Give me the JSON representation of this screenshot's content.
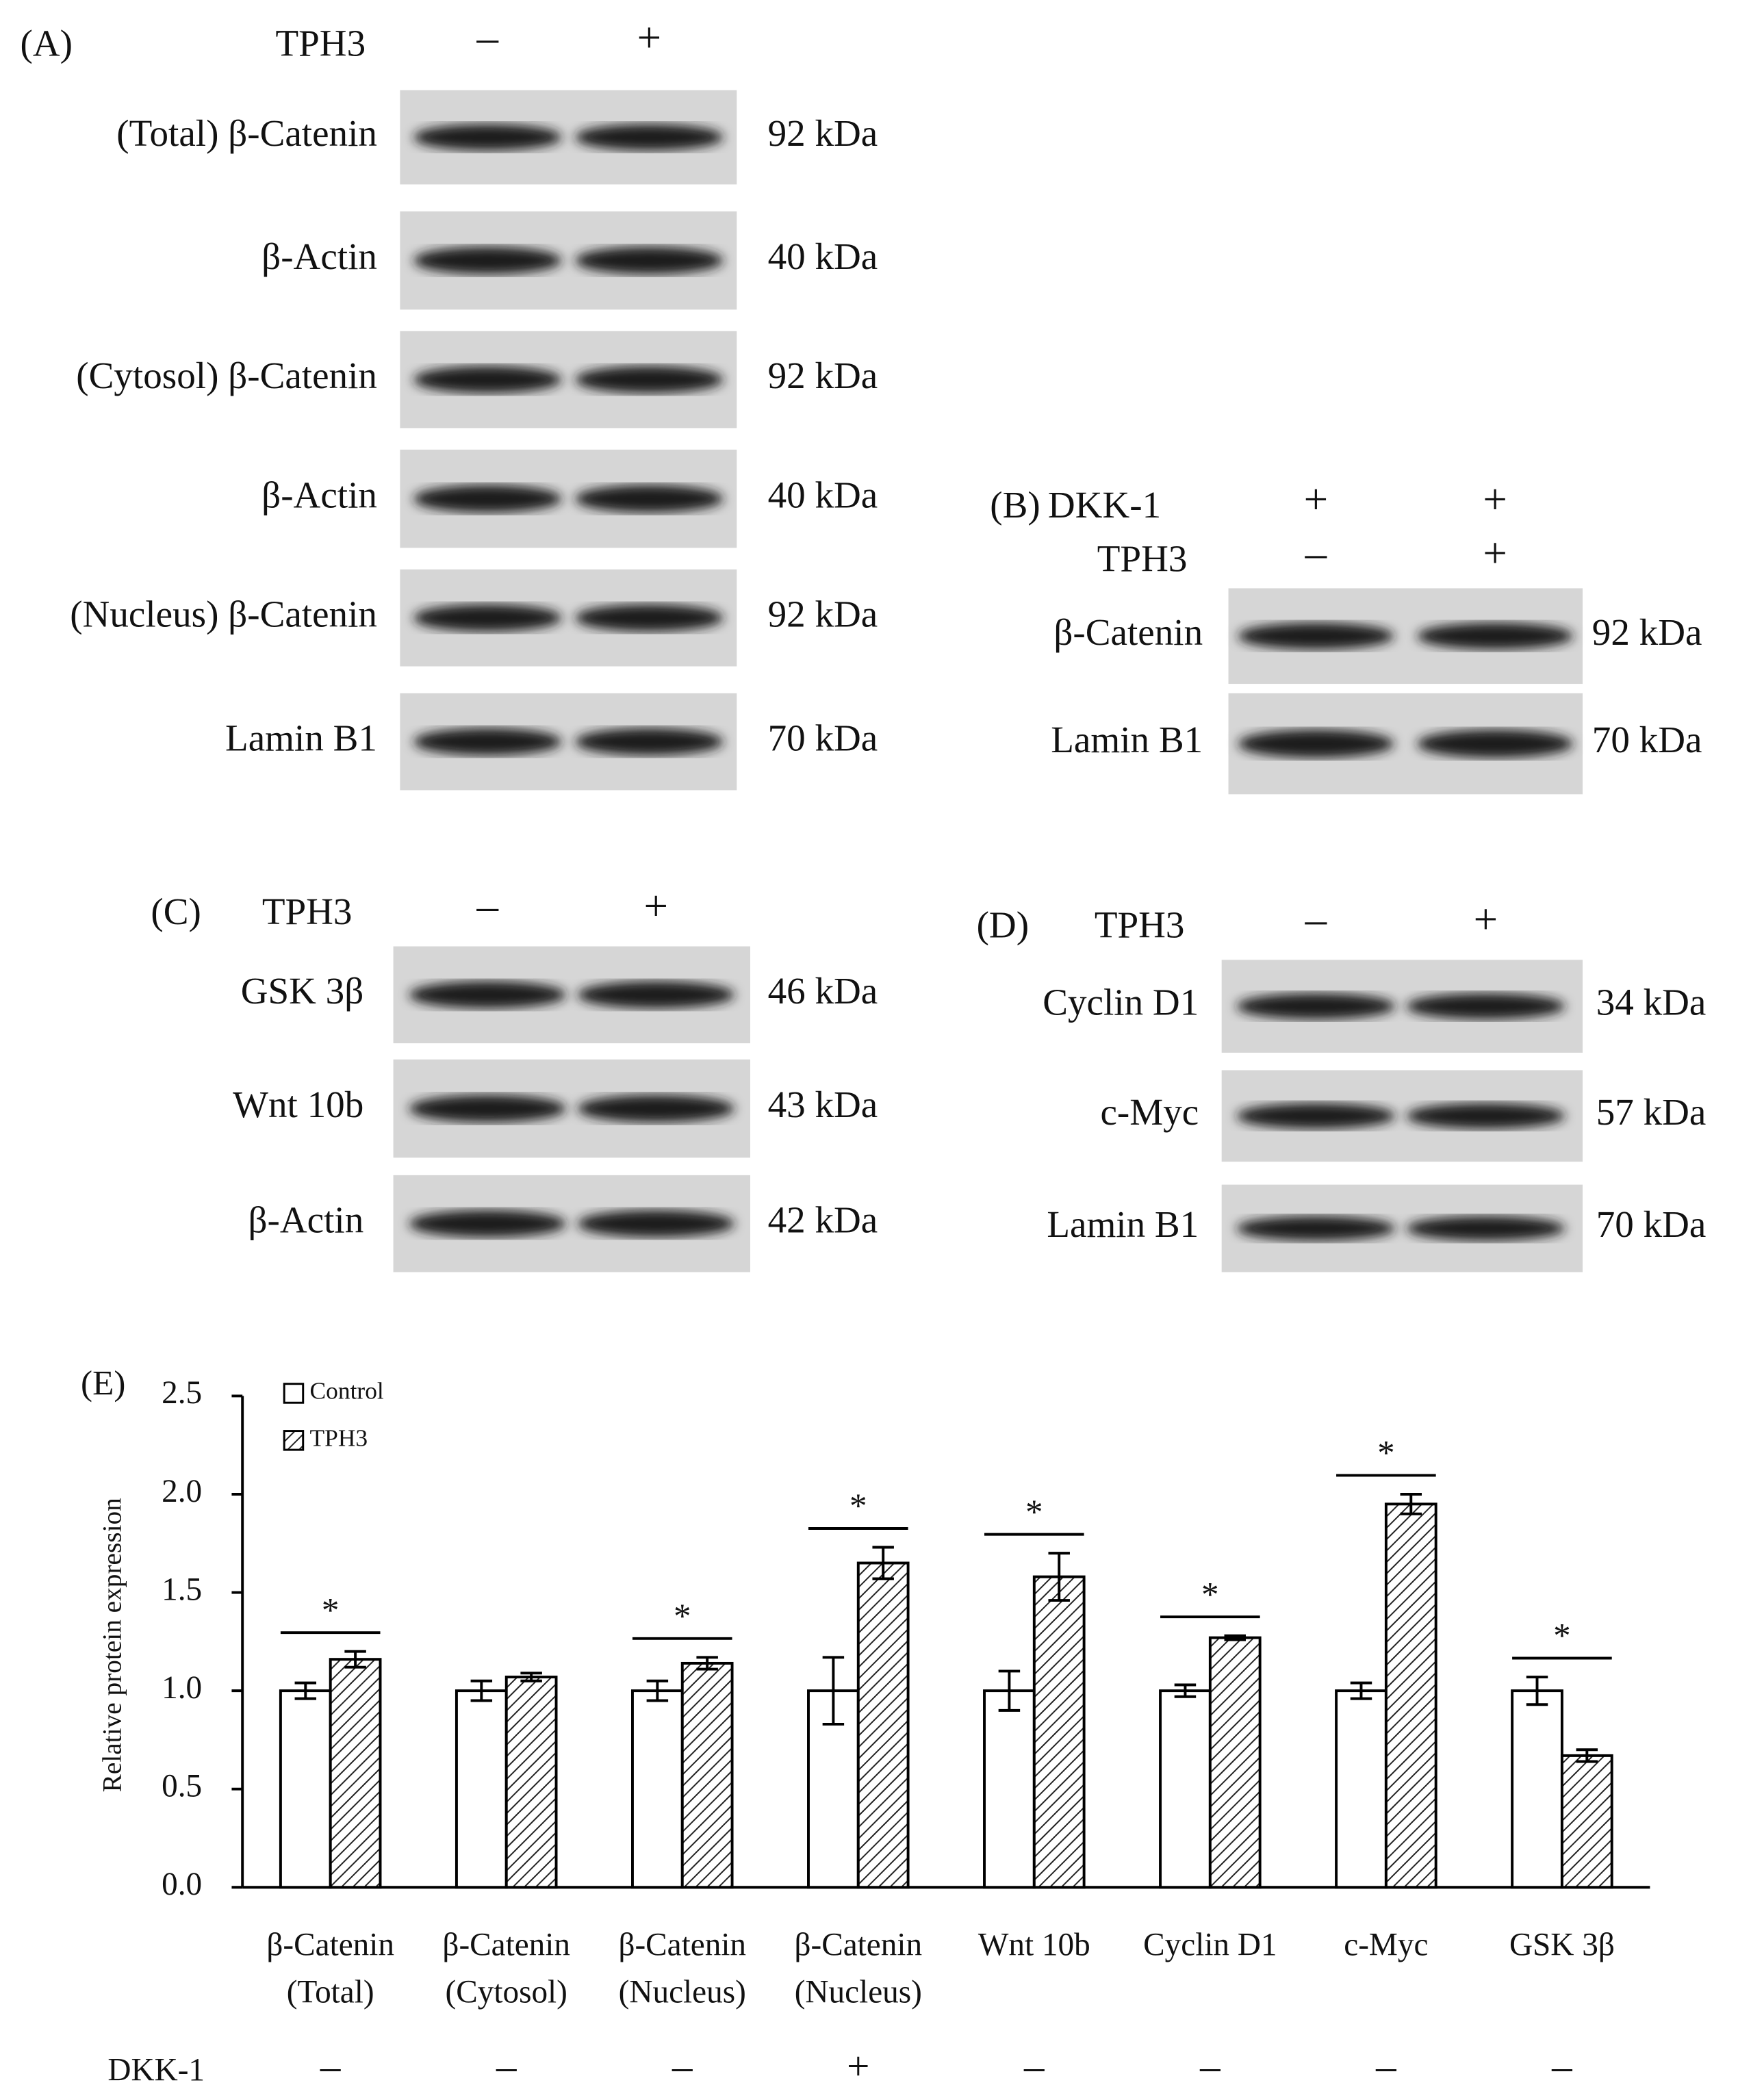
{
  "panels": [
    {
      "label": "(A)",
      "treatments": [
        {
          "name": "TPH3",
          "signs": [
            "–",
            "+"
          ]
        }
      ],
      "blots": [
        {
          "protein": "(Total) β-Catenin",
          "size": "92 kDa"
        },
        {
          "protein": "β-Actin",
          "size": "40 kDa"
        },
        {
          "protein": "(Cytosol) β-Catenin",
          "size": "92 kDa"
        },
        {
          "protein": "β-Actin",
          "size": "40 kDa"
        },
        {
          "protein": "(Nucleus) β-Catenin",
          "size": "92 kDa"
        },
        {
          "protein": "Lamin B1",
          "size": "70 kDa"
        }
      ]
    },
    {
      "label": "(B)",
      "treatments": [
        {
          "name": "DKK-1",
          "signs": [
            "+",
            "+"
          ]
        },
        {
          "name": "TPH3",
          "signs": [
            "–",
            "+"
          ]
        }
      ],
      "blots": [
        {
          "protein": "β-Catenin",
          "size": "92 kDa"
        },
        {
          "protein": "Lamin B1",
          "size": "70 kDa"
        }
      ]
    },
    {
      "label": "(C)",
      "treatments": [
        {
          "name": "TPH3",
          "signs": [
            "–",
            "+"
          ]
        }
      ],
      "blots": [
        {
          "protein": "GSK 3β",
          "size": "46 kDa"
        },
        {
          "protein": "Wnt 10b",
          "size": "43 kDa"
        },
        {
          "protein": "β-Actin",
          "size": "42 kDa"
        }
      ]
    },
    {
      "label": "(D)",
      "treatments": [
        {
          "name": "TPH3",
          "signs": [
            "–",
            "+"
          ]
        }
      ],
      "blots": [
        {
          "protein": "Cyclin D1",
          "size": "34 kDa"
        },
        {
          "protein": "c-Myc",
          "size": "57 kDa"
        },
        {
          "protein": "Lamin B1",
          "size": "70 kDa"
        }
      ]
    }
  ],
  "chart_data": {
    "type": "bar",
    "panel_label": "(E)",
    "ylabel": "Relative protein expression",
    "categories": [
      [
        "β-Catenin",
        "(Total)"
      ],
      [
        "β-Catenin",
        "(Cytosol)"
      ],
      [
        "β-Catenin",
        "(Nucleus)"
      ],
      [
        "β-Catenin",
        "(Nucleus)"
      ],
      [
        "Wnt 10b"
      ],
      [
        "Cyclin D1"
      ],
      [
        "c-Myc"
      ],
      [
        "GSK 3β"
      ]
    ],
    "series": [
      {
        "name": "Control",
        "color": "#ffffff",
        "hatch": false,
        "values": [
          1.0,
          1.0,
          1.0,
          1.0,
          1.0,
          1.0,
          1.0,
          1.0
        ],
        "errors": [
          0.04,
          0.05,
          0.05,
          0.17,
          0.1,
          0.03,
          0.04,
          0.07
        ]
      },
      {
        "name": "TPH3",
        "color": "#ffffff",
        "hatch": true,
        "values": [
          1.16,
          1.07,
          1.14,
          1.65,
          1.58,
          1.27,
          1.95,
          0.67
        ],
        "errors": [
          0.04,
          0.02,
          0.03,
          0.08,
          0.12,
          0.01,
          0.05,
          0.03
        ]
      }
    ],
    "significance": [
      "*",
      null,
      "*",
      "*",
      "*",
      "*",
      "*",
      "*"
    ],
    "dkk1": {
      "label": "DKK-1",
      "signs": [
        "–",
        "–",
        "–",
        "+",
        "–",
        "–",
        "–",
        "–"
      ]
    },
    "ylim": [
      0,
      2.5
    ],
    "yticks": [
      {
        "value": 0,
        "label": "0.0"
      },
      0.5,
      {
        "value": 1,
        "label": "1.0"
      },
      1.5,
      {
        "value": 2,
        "label": "2.0"
      },
      2.5
    ],
    "legend": "upper left"
  }
}
